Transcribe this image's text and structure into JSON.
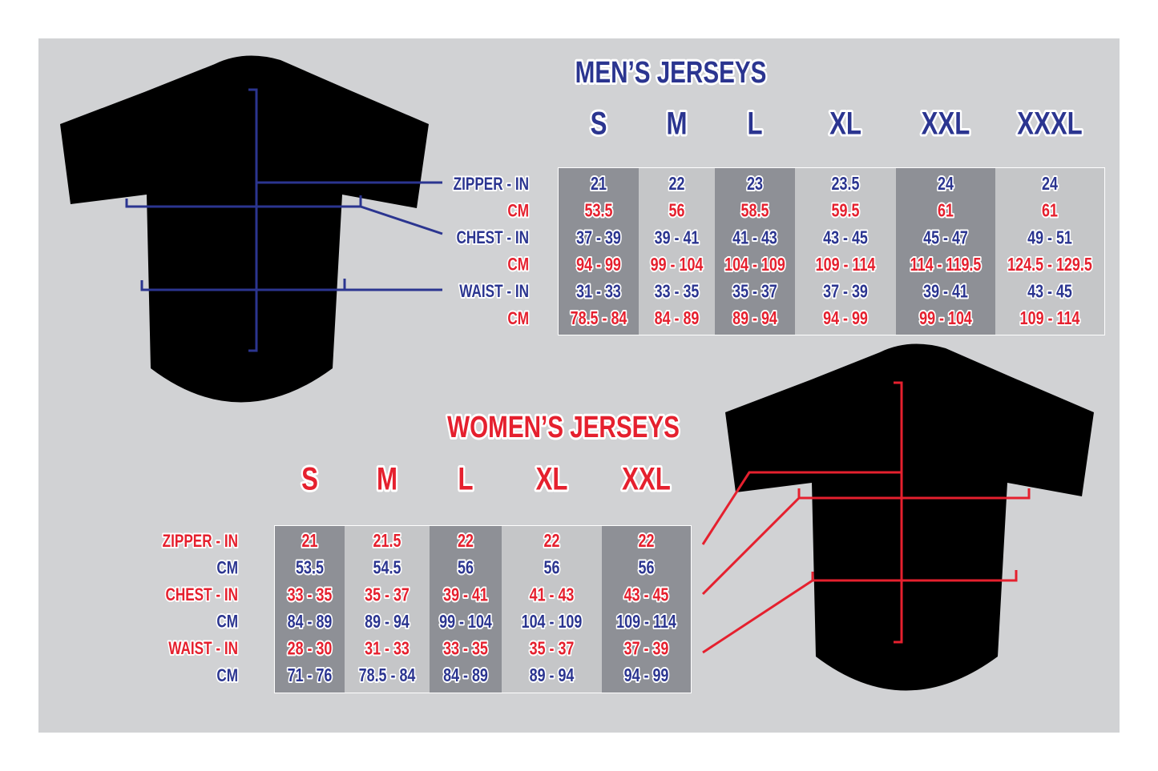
{
  "men": {
    "title": "MEN’S JERSEYS",
    "sizes": [
      "S",
      "M",
      "L",
      "XL",
      "XXL",
      "XXXL"
    ],
    "row_labels": [
      "ZIPPER - IN",
      "CM",
      "CHEST - IN",
      "CM",
      "WAIST - IN",
      "CM"
    ],
    "rows": [
      [
        "21",
        "22",
        "23",
        "23.5",
        "24",
        "24"
      ],
      [
        "53.5",
        "56",
        "58.5",
        "59.5",
        "61",
        "61"
      ],
      [
        "37 - 39",
        "39 - 41",
        "41 - 43",
        "43 - 45",
        "45 - 47",
        "49 - 51"
      ],
      [
        "94 - 99",
        "99 - 104",
        "104 - 109",
        "109 - 114",
        "114 - 119.5",
        "124.5 - 129.5"
      ],
      [
        "31 - 33",
        "33 - 35",
        "35 - 37",
        "37 - 39",
        "39 - 41",
        "43 - 45"
      ],
      [
        "78.5 - 84",
        "84 - 89",
        "89 - 94",
        "94 - 99",
        "99 - 104",
        "109 - 114"
      ]
    ]
  },
  "women": {
    "title": "WOMEN’S JERSEYS",
    "sizes": [
      "S",
      "M",
      "L",
      "XL",
      "XXL"
    ],
    "row_labels": [
      "ZIPPER - IN",
      "CM",
      "CHEST - IN",
      "CM",
      "WAIST - IN",
      "CM"
    ],
    "rows": [
      [
        "21",
        "21.5",
        "22",
        "22",
        "22"
      ],
      [
        "53.5",
        "54.5",
        "56",
        "56",
        "56"
      ],
      [
        "33 - 35",
        "35 - 37",
        "39 - 41",
        "41 - 43",
        "43 - 45"
      ],
      [
        "84 - 89",
        "89 - 94",
        "99 - 104",
        "104 - 109",
        "109 - 114"
      ],
      [
        "28 - 30",
        "31 - 33",
        "33 - 35",
        "35 - 37",
        "37 - 39"
      ],
      [
        "71 - 76",
        "78.5 - 84",
        "84 - 89",
        "89 - 94",
        "94 - 99"
      ]
    ]
  }
}
